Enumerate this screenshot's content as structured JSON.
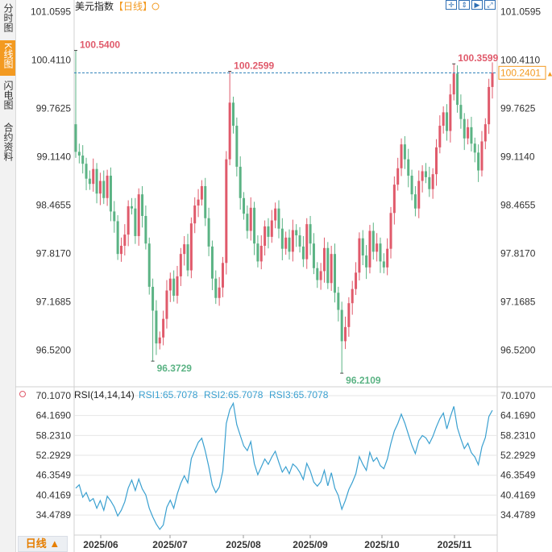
{
  "sidebar": {
    "tabs": [
      {
        "label": "分时图",
        "active": false
      },
      {
        "label": "K线图",
        "active": true
      },
      {
        "label": "闪电图",
        "active": false
      },
      {
        "label": "合约资料",
        "active": false
      }
    ]
  },
  "header": {
    "title": "美元指数",
    "period_tag": "【日线】",
    "settings_icon": "gear-icon"
  },
  "toolbar": {
    "icons": [
      "crosshair-icon",
      "move-icon",
      "play-icon",
      "expand-icon"
    ]
  },
  "period_button": {
    "label": "日线",
    "arrow": "▲"
  },
  "colors": {
    "up": "#e05a6b",
    "down": "#5bb384",
    "rsi": "#3aa0d0",
    "axis_text": "#333333",
    "price_tag": "#f39a21",
    "grid": "#e6e6e6"
  },
  "rsi": {
    "label": "RSI(14,14,14)",
    "rsi1_label": "RSI1:65.7078",
    "rsi2_label": "RSI2:65.7078",
    "rsi3_label": "RSI3:65.7078"
  },
  "chart_data": [
    {
      "type": "candlestick",
      "yticks": [
        "101.0595",
        "100.4110",
        "99.7625",
        "99.1140",
        "98.4655",
        "97.8170",
        "97.1685",
        "96.5200"
      ],
      "ylim": [
        96.05,
        101.13
      ],
      "xticks": [
        "2025/06",
        "2025/07",
        "2025/08",
        "2025/09",
        "2025/10",
        "2025/11"
      ],
      "current_price": "100.2401",
      "current_value": 100.2401,
      "annotations": [
        {
          "text": "100.5400",
          "value": 100.54,
          "bar": 0,
          "kind": "high"
        },
        {
          "text": "100.2599",
          "value": 100.2599,
          "bar": 44,
          "kind": "high"
        },
        {
          "text": "100.3599",
          "value": 100.3599,
          "bar": 108,
          "kind": "high"
        },
        {
          "text": "96.3729",
          "value": 96.3729,
          "bar": 22,
          "kind": "low"
        },
        {
          "text": "96.2109",
          "value": 96.2109,
          "bar": 76,
          "kind": "low"
        }
      ],
      "closes": [
        99.18,
        99.13,
        99.02,
        98.82,
        98.75,
        98.95,
        98.62,
        98.79,
        98.56,
        98.86,
        98.38,
        98.25,
        97.81,
        97.92,
        98.07,
        98.45,
        98.42,
        98.05,
        98.61,
        98.32,
        97.95,
        97.37,
        97.05,
        96.61,
        96.69,
        96.94,
        97.32,
        97.48,
        97.25,
        97.51,
        97.81,
        97.94,
        97.59,
        98.22,
        98.46,
        98.54,
        98.72,
        98.29,
        97.91,
        97.48,
        97.22,
        97.36,
        97.69,
        99.08,
        99.84,
        99.53,
        98.98,
        98.56,
        98.35,
        98.12,
        98.43,
        97.95,
        97.71,
        97.92,
        98.18,
        98.04,
        98.26,
        98.42,
        98.15,
        97.88,
        98.03,
        97.84,
        98.13,
        98.06,
        97.91,
        97.74,
        98.21,
        97.95,
        97.62,
        97.46,
        97.58,
        97.89,
        97.42,
        97.81,
        97.29,
        97.06,
        96.64,
        96.83,
        97.15,
        97.34,
        97.56,
        98.02,
        97.79,
        97.63,
        98.12,
        97.84,
        97.95,
        97.71,
        97.63,
        97.88,
        98.36,
        98.74,
        98.96,
        99.28,
        99.08,
        98.86,
        98.61,
        98.42,
        98.79,
        98.92,
        98.84,
        98.68,
        98.88,
        99.24,
        99.53,
        99.71,
        99.46,
        99.95,
        100.23,
        99.81,
        99.62,
        99.36,
        99.51,
        99.29,
        99.17,
        98.93,
        99.32,
        99.55,
        100.05,
        100.24
      ]
    },
    {
      "type": "line",
      "name": "RSI1",
      "yticks": [
        "70.1070",
        "64.1690",
        "58.2310",
        "52.2929",
        "46.3549",
        "40.4169",
        "34.4789"
      ],
      "ylim": [
        28.5,
        72.5
      ],
      "values": [
        42.5,
        43.5,
        39.8,
        41.2,
        38.6,
        39.4,
        36.5,
        38.8,
        35.9,
        40.1,
        38.7,
        36.9,
        34.2,
        35.9,
        38.4,
        42.6,
        44.9,
        41.8,
        45.2,
        42.3,
        40.5,
        36.5,
        33.9,
        31.8,
        30.2,
        31.5,
        36.8,
        38.9,
        36.5,
        40.8,
        43.9,
        46.2,
        44.1,
        51.3,
        53.8,
        56.2,
        57.4,
        53.6,
        48.9,
        43.5,
        41.2,
        42.8,
        47.6,
        61.8,
        65.9,
        67.8,
        61.5,
        58.2,
        55.1,
        53.7,
        56.4,
        49.8,
        46.5,
        48.9,
        51.2,
        49.6,
        51.8,
        53.5,
        50.2,
        47.3,
        48.9,
        46.8,
        49.7,
        48.8,
        47.2,
        45.1,
        49.9,
        47.6,
        44.3,
        43.1,
        44.4,
        47.8,
        43.2,
        47.1,
        42.5,
        40.3,
        36.2,
        38.8,
        42.1,
        44.2,
        46.8,
        51.9,
        49.6,
        47.8,
        53.2,
        50.5,
        51.6,
        49.2,
        48.3,
        51.2,
        55.8,
        59.6,
        61.8,
        64.6,
        61.9,
        58.6,
        55.3,
        52.8,
        56.7,
        58.2,
        57.5,
        55.8,
        57.9,
        60.8,
        63.2,
        64.9,
        60.2,
        63.8,
        66.9,
        60.5,
        57.2,
        54.3,
        55.9,
        53.1,
        51.8,
        49.5,
        54.8,
        57.6,
        63.9,
        65.71
      ]
    }
  ]
}
